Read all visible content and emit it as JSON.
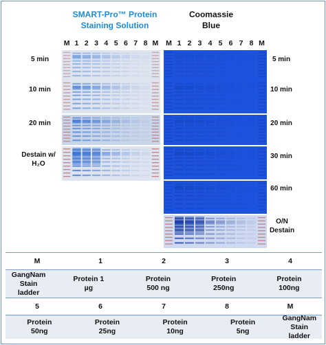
{
  "titles": {
    "left": "SMART-Pro™ Protein Staining Solution",
    "right": "Coomassie Blue"
  },
  "lanes": [
    "M",
    "1",
    "2",
    "3",
    "4",
    "5",
    "6",
    "7",
    "8",
    "M"
  ],
  "left_rows": [
    "5 min",
    "10 min",
    "20 min",
    "Destain w/ H₂O"
  ],
  "right_rows": [
    "5 min",
    "10 min",
    "20 min",
    "30 min",
    "60 min",
    "O/N Destain"
  ],
  "colors": {
    "accent_title": "#1c8ad8",
    "smart_gel_bg": "#dde4ef",
    "smart_band": "#3b74d4",
    "coomassie_gel_bg": "#1c52dc",
    "coomassie_band": "#1341b4",
    "destain_gel_bg": "#cfd9ef",
    "table_border": "#7a9ccd",
    "table_row_fill": "#e8edf4"
  },
  "table": {
    "row1_headers": [
      "M",
      "1",
      "2",
      "3",
      "4"
    ],
    "row1_values": [
      "GangNam Stain ladder",
      "Protein 1 µg",
      "Protein 500 ng",
      "Protein 250ng",
      "Protein 100ng"
    ],
    "row2_headers": [
      "5",
      "6",
      "7",
      "8",
      "M"
    ],
    "row2_values": [
      "Protein 50ng",
      "Protein 25ng",
      "Protein 10ng",
      "Protein 5ng",
      "GangNam Stain ladder"
    ]
  }
}
